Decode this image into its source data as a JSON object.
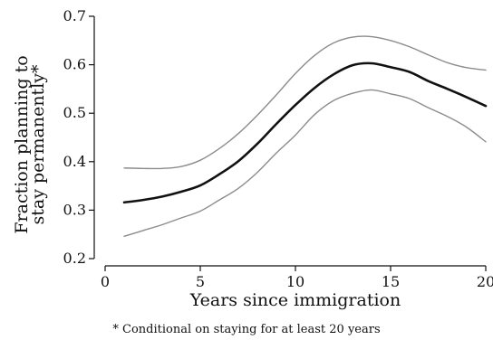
{
  "chart_data": {
    "type": "line",
    "xlabel": "Years since immigration",
    "ylabel_line1": "Fraction planning to",
    "ylabel_line2": "stay permanently*",
    "footnote": "* Conditional on staying for at least 20 years",
    "xlim": [
      0,
      20
    ],
    "ylim": [
      0.2,
      0.7
    ],
    "x_ticks": [
      0,
      5,
      10,
      15,
      20
    ],
    "y_ticks": [
      0.2,
      0.3,
      0.4,
      0.5,
      0.6,
      0.7
    ],
    "x_tick_labels": [
      "0",
      "5",
      "10",
      "15",
      "20"
    ],
    "y_tick_labels": [
      "0.2",
      "0.3",
      "0.4",
      "0.5",
      "0.6",
      "0.7"
    ],
    "grid": false,
    "series": [
      {
        "role": "estimate",
        "color": "#111111",
        "points": [
          [
            1,
            0.316
          ],
          [
            2,
            0.321
          ],
          [
            3,
            0.328
          ],
          [
            4,
            0.338
          ],
          [
            5,
            0.351
          ],
          [
            6,
            0.374
          ],
          [
            7,
            0.401
          ],
          [
            8,
            0.437
          ],
          [
            9,
            0.478
          ],
          [
            10,
            0.517
          ],
          [
            11,
            0.552
          ],
          [
            12,
            0.58
          ],
          [
            13,
            0.599
          ],
          [
            14,
            0.603
          ],
          [
            15,
            0.595
          ],
          [
            16,
            0.585
          ],
          [
            17,
            0.566
          ],
          [
            18,
            0.55
          ],
          [
            19,
            0.533
          ],
          [
            20,
            0.515
          ]
        ]
      },
      {
        "role": "upper-bound",
        "color": "#8c8c8c",
        "points": [
          [
            1,
            0.387
          ],
          [
            2,
            0.386
          ],
          [
            3,
            0.386
          ],
          [
            4,
            0.39
          ],
          [
            5,
            0.403
          ],
          [
            6,
            0.427
          ],
          [
            7,
            0.458
          ],
          [
            8,
            0.496
          ],
          [
            9,
            0.538
          ],
          [
            10,
            0.582
          ],
          [
            11,
            0.619
          ],
          [
            12,
            0.645
          ],
          [
            13,
            0.657
          ],
          [
            14,
            0.658
          ],
          [
            15,
            0.65
          ],
          [
            16,
            0.637
          ],
          [
            17,
            0.62
          ],
          [
            18,
            0.604
          ],
          [
            19,
            0.594
          ],
          [
            20,
            0.589
          ]
        ]
      },
      {
        "role": "lower-bound",
        "color": "#8c8c8c",
        "points": [
          [
            1,
            0.246
          ],
          [
            2,
            0.258
          ],
          [
            3,
            0.27
          ],
          [
            4,
            0.284
          ],
          [
            5,
            0.298
          ],
          [
            6,
            0.321
          ],
          [
            7,
            0.345
          ],
          [
            8,
            0.378
          ],
          [
            9,
            0.418
          ],
          [
            10,
            0.455
          ],
          [
            11,
            0.497
          ],
          [
            12,
            0.526
          ],
          [
            13,
            0.541
          ],
          [
            14,
            0.548
          ],
          [
            15,
            0.54
          ],
          [
            16,
            0.53
          ],
          [
            17,
            0.511
          ],
          [
            18,
            0.493
          ],
          [
            19,
            0.471
          ],
          [
            20,
            0.441
          ]
        ]
      }
    ]
  }
}
